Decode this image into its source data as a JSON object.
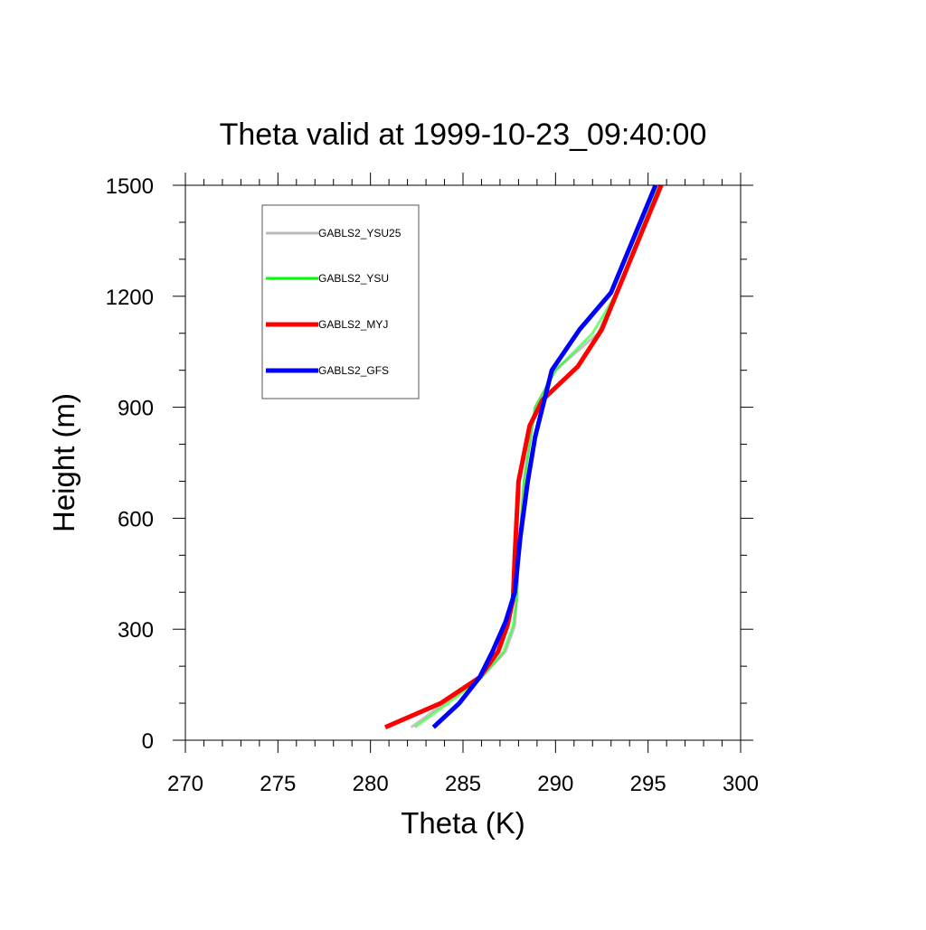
{
  "chart_data": {
    "type": "line",
    "title": "Theta valid at 1999-10-23_09:40:00",
    "xlabel": "Theta (K)",
    "ylabel": "Height (m)",
    "xlim": [
      270,
      300
    ],
    "ylim": [
      0,
      1500
    ],
    "xticks": [
      270,
      275,
      280,
      285,
      290,
      295,
      300
    ],
    "yticks": [
      0,
      300,
      600,
      900,
      1200,
      1500
    ],
    "xtick_labels": [
      "270",
      "275",
      "280",
      "285",
      "290",
      "295",
      "300"
    ],
    "ytick_labels": [
      "0",
      "300",
      "600",
      "900",
      "1200",
      "1500"
    ],
    "grid": false,
    "legend_position": "top-left",
    "series": [
      {
        "name": "GABLS2_YSU25",
        "color": "#bbbbbb",
        "x": [
          282.2,
          284.0,
          286.0,
          287.3,
          287.8,
          287.9,
          288.0,
          288.3,
          288.9,
          290.0,
          292.3,
          293.2,
          295.8
        ],
        "y": [
          35,
          100,
          170,
          240,
          310,
          380,
          500,
          700,
          900,
          1000,
          1100,
          1200,
          1500
        ]
      },
      {
        "name": "GABLS2_YSU",
        "color": "#00ff00",
        "x": [
          282.4,
          284.2,
          286.0,
          287.2,
          287.7,
          287.9,
          288.0,
          288.3,
          288.9,
          290.0,
          292.0,
          293.2,
          295.6
        ],
        "y": [
          35,
          100,
          170,
          240,
          310,
          380,
          500,
          700,
          900,
          1000,
          1100,
          1200,
          1500
        ]
      },
      {
        "name": "GABLS2_MYJ",
        "color": "#ff0000",
        "x": [
          280.8,
          283.8,
          285.9,
          286.9,
          287.4,
          287.7,
          287.8,
          288.0,
          288.6,
          289.3,
          291.2,
          292.5,
          295.7
        ],
        "y": [
          35,
          100,
          170,
          240,
          310,
          380,
          500,
          700,
          850,
          920,
          1010,
          1110,
          1500
        ]
      },
      {
        "name": "GABLS2_GFS",
        "color": "#0000ff",
        "x": [
          283.4,
          284.8,
          285.9,
          286.6,
          287.3,
          287.8,
          288.1,
          288.5,
          288.9,
          289.8,
          291.3,
          293.0,
          295.4
        ],
        "y": [
          35,
          100,
          170,
          240,
          320,
          400,
          550,
          700,
          820,
          1000,
          1110,
          1210,
          1500
        ]
      }
    ]
  }
}
